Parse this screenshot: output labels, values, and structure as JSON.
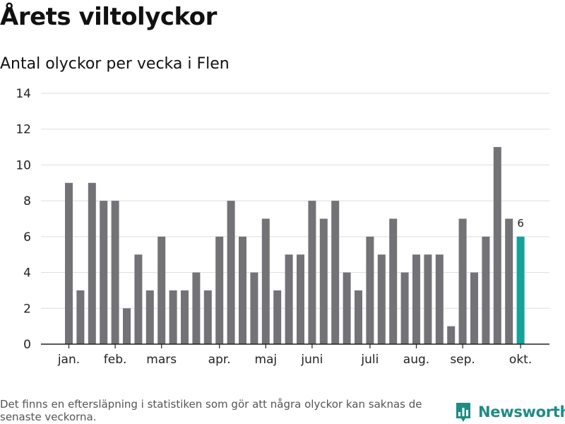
{
  "title": "Årets viltolyckor",
  "subtitle": "Antal olyckor per vecka i Flen",
  "footnote": "Det finns en eftersläpning i statistiken som gör att några olyckor kan saknas de senaste veckorna.",
  "brand": {
    "name": "Newsworthy",
    "color": "#1f8c84",
    "icon": "newsworthy-chart-icon"
  },
  "colors": {
    "bar": "#737276",
    "highlight": "#14a39a",
    "grid": "#dddddd",
    "axis": "#222222",
    "text": "#222222"
  },
  "chart_data": {
    "type": "bar",
    "title": "Årets viltolyckor",
    "subtitle": "Antal olyckor per vecka i Flen",
    "xlabel": "",
    "ylabel": "",
    "ylim": [
      0,
      14
    ],
    "yticks": [
      0,
      2,
      4,
      6,
      8,
      10,
      12,
      14
    ],
    "grid": true,
    "legend": "none",
    "x_tick_labels": [
      {
        "label": "jan.",
        "week_index": 0
      },
      {
        "label": "feb.",
        "week_index": 4
      },
      {
        "label": "mars",
        "week_index": 8
      },
      {
        "label": "apr.",
        "week_index": 13
      },
      {
        "label": "maj",
        "week_index": 17
      },
      {
        "label": "juni",
        "week_index": 21
      },
      {
        "label": "juli",
        "week_index": 26
      },
      {
        "label": "aug.",
        "week_index": 30
      },
      {
        "label": "sep.",
        "week_index": 34
      },
      {
        "label": "okt.",
        "week_index": 39
      }
    ],
    "values": [
      9,
      3,
      9,
      8,
      8,
      2,
      5,
      3,
      6,
      3,
      3,
      4,
      3,
      6,
      8,
      6,
      4,
      7,
      3,
      5,
      5,
      8,
      7,
      8,
      4,
      3,
      6,
      5,
      7,
      4,
      5,
      5,
      5,
      1,
      7,
      4,
      6,
      11,
      7,
      6
    ],
    "highlight_index": 39,
    "data_labels": [
      {
        "index": 39,
        "text": "6"
      }
    ]
  }
}
